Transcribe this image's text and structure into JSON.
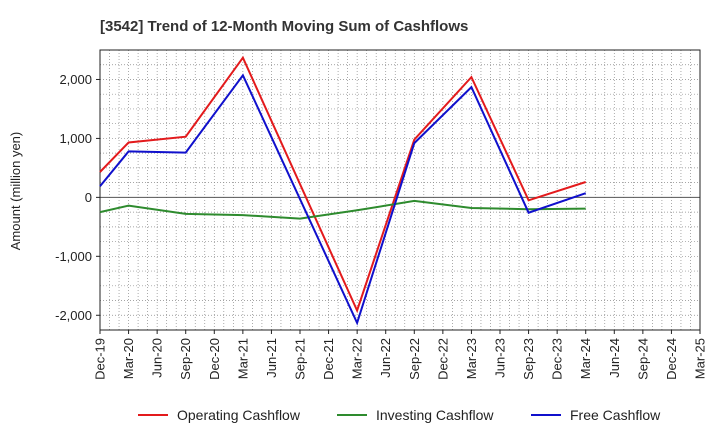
{
  "chart_data": {
    "type": "line",
    "title": "[3542]  Trend of 12-Month Moving Sum of Cashflows",
    "ylabel": "Amount (million yen)",
    "xlabel": "",
    "ylim": [
      -2250,
      2500
    ],
    "yticks": [
      2000,
      1000,
      0,
      -1000,
      -2000
    ],
    "ytick_labels": [
      "2,000",
      "1,000",
      "0",
      "-1,000",
      "-2,000"
    ],
    "grid": true,
    "legend_position": "bottom",
    "categories": [
      "Dec-19",
      "Mar-20",
      "Jun-20",
      "Sep-20",
      "Dec-20",
      "Mar-21",
      "Jun-21",
      "Sep-21",
      "Dec-21",
      "Mar-22",
      "Jun-22",
      "Sep-22",
      "Dec-22",
      "Mar-23",
      "Jun-23",
      "Sep-23",
      "Dec-23",
      "Mar-24",
      "Jun-24",
      "Sep-24",
      "Dec-24",
      "Mar-25"
    ],
    "series": [
      {
        "name": "Operating Cashflow",
        "color": "#e31a1c",
        "values": [
          430,
          930,
          null,
          1030,
          null,
          2370,
          null,
          null,
          null,
          -1920,
          null,
          980,
          null,
          2040,
          null,
          -50,
          null,
          260,
          null,
          null,
          null,
          null
        ]
      },
      {
        "name": "Investing Cashflow",
        "color": "#2e8b2e",
        "values": [
          -250,
          -140,
          null,
          -280,
          null,
          -300,
          null,
          -360,
          null,
          -220,
          null,
          -60,
          null,
          -180,
          null,
          -200,
          null,
          -190,
          null,
          null,
          null,
          null
        ]
      },
      {
        "name": "Free Cashflow",
        "color": "#1010cc",
        "values": [
          190,
          780,
          null,
          760,
          null,
          2070,
          null,
          null,
          null,
          -2130,
          null,
          920,
          null,
          1870,
          null,
          -260,
          null,
          70,
          null,
          null,
          null,
          null
        ]
      }
    ]
  }
}
